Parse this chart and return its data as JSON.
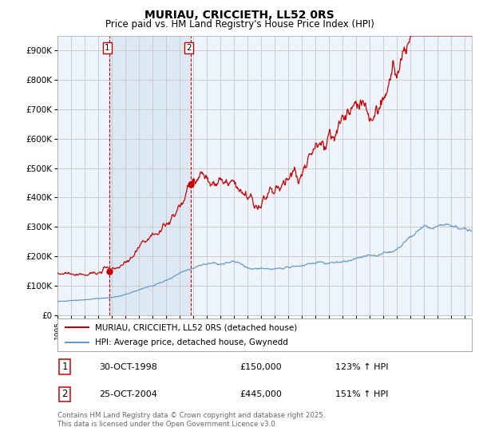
{
  "title": "MURIAU, CRICCIETH, LL52 0RS",
  "subtitle": "Price paid vs. HM Land Registry's House Price Index (HPI)",
  "ylim": [
    0,
    950000
  ],
  "yticks": [
    0,
    100000,
    200000,
    300000,
    400000,
    500000,
    600000,
    700000,
    800000,
    900000
  ],
  "xlim_start": 1995.0,
  "xlim_end": 2025.5,
  "red_color": "#cc0000",
  "blue_color": "#6699cc",
  "shade_color": "#dce9f5",
  "bg_color": "#eef4fb",
  "grid_color": "#cccccc",
  "marker1_x": 1998.83,
  "marker1_y": 150000,
  "marker2_x": 2004.82,
  "marker2_y": 445000,
  "sale1_date": "30-OCT-1998",
  "sale1_price": "£150,000",
  "sale1_hpi": "123% ↑ HPI",
  "sale2_date": "25-OCT-2004",
  "sale2_price": "£445,000",
  "sale2_hpi": "151% ↑ HPI",
  "legend_red": "MURIAU, CRICCIETH, LL52 0RS (detached house)",
  "legend_blue": "HPI: Average price, detached house, Gwynedd",
  "footer": "Contains HM Land Registry data © Crown copyright and database right 2025.\nThis data is licensed under the Open Government Licence v3.0."
}
